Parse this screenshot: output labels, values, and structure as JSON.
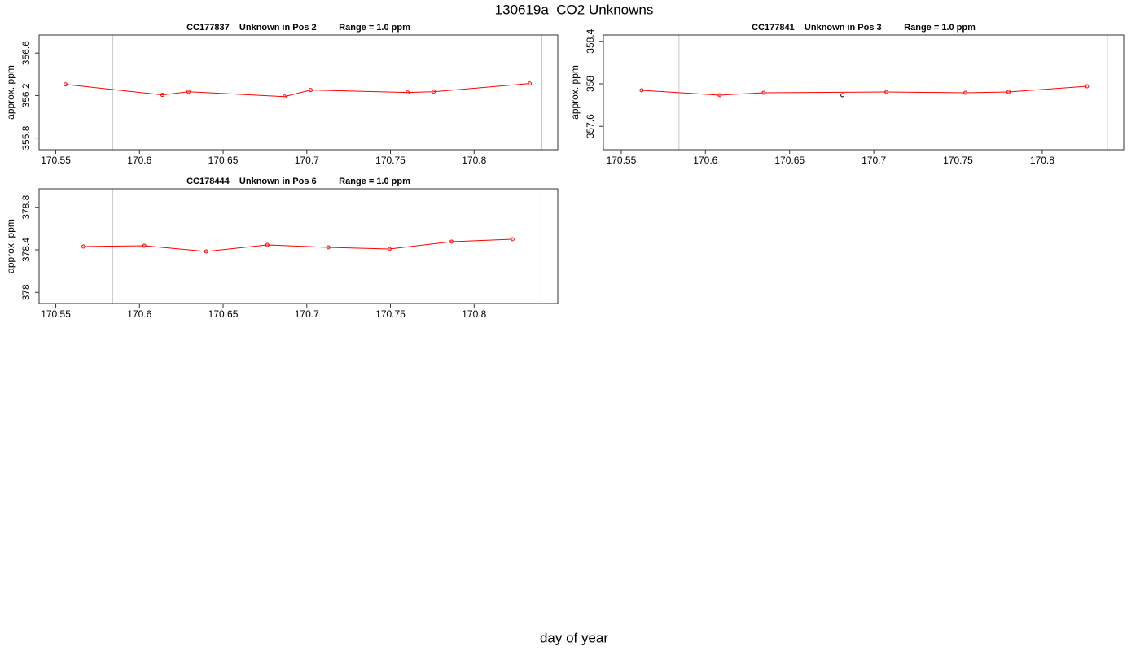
{
  "title": "130619a  CO2 Unknowns",
  "xlabel": "day of year",
  "chart_data": [
    {
      "type": "line",
      "title": "CC177837    Unknown in Pos 2         Range = 1.0 ppm",
      "ylabel": "approx. ppm",
      "xlim": [
        170.54,
        170.85
      ],
      "xticks": [
        170.55,
        170.6,
        170.65,
        170.7,
        170.75,
        170.8
      ],
      "ylim": [
        355.69,
        356.77
      ],
      "yticks": [
        355.8,
        356.2,
        356.6
      ],
      "vlines": [
        170.584,
        170.8405
      ],
      "series": [
        {
          "color": "#ff0000",
          "line": true,
          "x": [
            170.5558,
            170.6137,
            170.6293,
            170.6867,
            170.7023,
            170.7602,
            170.7758,
            170.8332
          ],
          "values": [
            356.305,
            356.206,
            356.236,
            356.19,
            356.252,
            356.229,
            356.236,
            356.313
          ]
        }
      ]
    },
    {
      "type": "line",
      "title": "CC177841    Unknown in Pos 3         Range = 1.0 ppm",
      "ylabel": "approx. ppm",
      "xlim": [
        170.5394,
        170.8484
      ],
      "xticks": [
        170.55,
        170.6,
        170.65,
        170.7,
        170.75,
        170.8
      ],
      "ylim": [
        357.38,
        358.459
      ],
      "yticks": [
        357.6,
        358.0,
        358.4
      ],
      "vlines": [
        170.5843,
        170.8387
      ],
      "series": [
        {
          "color": "#ff0000",
          "line": true,
          "x": [
            170.5621,
            170.6085,
            170.6346,
            170.7075,
            170.7544,
            170.78,
            170.8266
          ],
          "values": [
            357.939,
            357.893,
            357.916,
            357.923,
            357.916,
            357.923,
            357.977
          ]
        },
        {
          "color": "#000000",
          "line": false,
          "x": [
            170.6814
          ],
          "values": [
            357.893
          ]
        }
      ]
    },
    {
      "type": "line",
      "title": "CC178444    Unknown in Pos 6         Range = 1.0 ppm",
      "ylabel": "approx. ppm",
      "xlim": [
        170.54,
        170.85
      ],
      "xticks": [
        170.55,
        170.6,
        170.65,
        170.7,
        170.75,
        170.8
      ],
      "ylim": [
        377.895,
        378.974
      ],
      "yticks": [
        378.0,
        378.4,
        378.8
      ],
      "vlines": [
        170.584,
        170.84
      ],
      "series": [
        {
          "color": "#ff0000",
          "line": true,
          "x": [
            170.5665,
            170.6029,
            170.6399,
            170.6764,
            170.7129,
            170.7494,
            170.7865,
            170.8229
          ],
          "values": [
            378.431,
            378.438,
            378.385,
            378.446,
            378.423,
            378.408,
            378.477,
            378.5
          ]
        }
      ]
    }
  ]
}
